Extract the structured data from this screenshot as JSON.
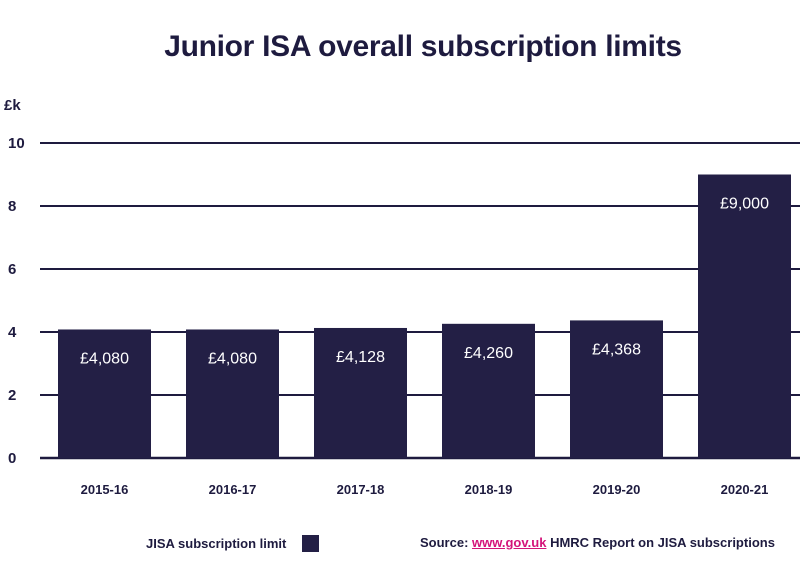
{
  "chart_data": {
    "type": "bar",
    "title": "Junior ISA overall subscription limits",
    "ylabel": "£k",
    "categories": [
      "2015-16",
      "2016-17",
      "2017-18",
      "2018-19",
      "2019-20",
      "2020-21"
    ],
    "values": [
      4.08,
      4.08,
      4.128,
      4.26,
      4.368,
      9.0
    ],
    "data_labels": [
      "£4,080",
      "£4,080",
      "£4,128",
      "£4,260",
      "£4,368",
      "£9,000"
    ],
    "yticks": [
      "0",
      "2",
      "4",
      "6",
      "8",
      "10"
    ],
    "ytick_values": [
      0,
      2,
      4,
      6,
      8,
      10
    ],
    "ylim": [
      0,
      10
    ],
    "grid": true,
    "legend_position": "bottom-left",
    "series": [
      {
        "name": "JISA subscription limit",
        "values": [
          4.08,
          4.08,
          4.128,
          4.26,
          4.368,
          9.0
        ]
      }
    ],
    "bar_color": "#231f45"
  },
  "legend": {
    "label": "JISA subscription limit"
  },
  "source": {
    "prefix": "Source:",
    "link": "www.gov.uk",
    "suffix": "HMRC Report on JISA subscriptions"
  }
}
